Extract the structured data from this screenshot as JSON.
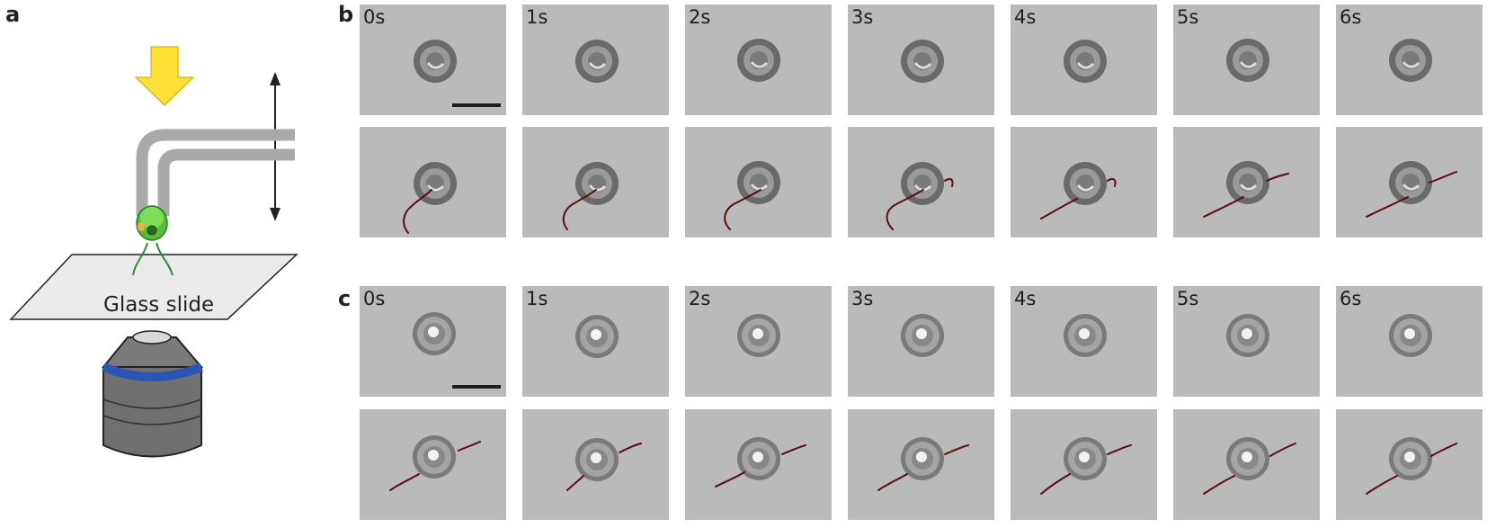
{
  "panels": {
    "a": {
      "letter": "a",
      "slide_label": "Glass slide"
    },
    "b": {
      "letter": "b",
      "time_labels": [
        "0s",
        "1s",
        "2s",
        "3s",
        "4s",
        "5s",
        "6s"
      ]
    },
    "c": {
      "letter": "c",
      "time_labels": [
        "0s",
        "1s",
        "2s",
        "3s",
        "4s",
        "5s",
        "6s"
      ]
    }
  },
  "colors": {
    "arrow": "#ffe034",
    "cell": "#55bf3b",
    "flagella_overlay": "#5a0c10",
    "objective_band": "#2a55b5"
  }
}
